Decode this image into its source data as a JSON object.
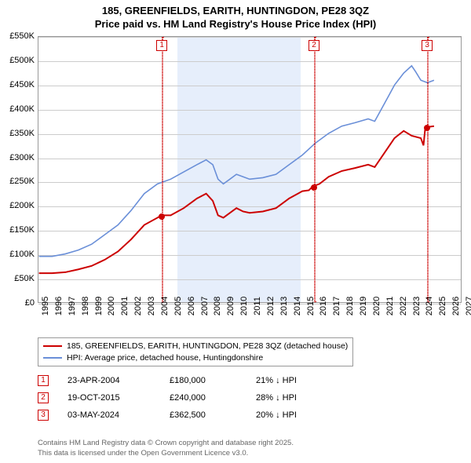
{
  "title_line1": "185, GREENFIELDS, EARITH, HUNTINGDON, PE28 3QZ",
  "title_line2": "Price paid vs. HM Land Registry's House Price Index (HPI)",
  "chart": {
    "type": "line",
    "x_min_year": 1995,
    "x_max_year": 2027,
    "y_min": 0,
    "y_max": 550000,
    "y_ticks": [
      0,
      50000,
      100000,
      150000,
      200000,
      250000,
      300000,
      350000,
      400000,
      450000,
      500000,
      550000
    ],
    "y_tick_labels": [
      "£0",
      "£50K",
      "£100K",
      "£150K",
      "£200K",
      "£250K",
      "£300K",
      "£350K",
      "£400K",
      "£450K",
      "£500K",
      "£550K"
    ],
    "x_ticks": [
      1995,
      1996,
      1997,
      1998,
      1999,
      2000,
      2001,
      2002,
      2003,
      2004,
      2005,
      2006,
      2007,
      2008,
      2009,
      2010,
      2011,
      2012,
      2013,
      2014,
      2015,
      2016,
      2017,
      2018,
      2019,
      2020,
      2021,
      2022,
      2023,
      2024,
      2025,
      2026,
      2027
    ],
    "grid_color": "#cccccc",
    "plot_border_color": "#999999",
    "background_color": "#ffffff",
    "highlight_band_color": "#e6eefb",
    "highlight_band_start": 2005.5,
    "highlight_band_end": 2014.8,
    "series": [
      {
        "id": "property",
        "label": "185, GREENFIELDS, EARITH, HUNTINGDON, PE28 3QZ (detached house)",
        "color": "#cc0000",
        "line_width": 2,
        "points": [
          [
            1995.0,
            60000
          ],
          [
            1996.0,
            60000
          ],
          [
            1997.0,
            62000
          ],
          [
            1998.0,
            68000
          ],
          [
            1999.0,
            75000
          ],
          [
            2000.0,
            88000
          ],
          [
            2001.0,
            105000
          ],
          [
            2002.0,
            130000
          ],
          [
            2003.0,
            160000
          ],
          [
            2004.0,
            175000
          ],
          [
            2004.3,
            180000
          ],
          [
            2005.0,
            180000
          ],
          [
            2006.0,
            195000
          ],
          [
            2007.0,
            215000
          ],
          [
            2007.7,
            225000
          ],
          [
            2008.2,
            210000
          ],
          [
            2008.6,
            180000
          ],
          [
            2009.0,
            175000
          ],
          [
            2009.5,
            185000
          ],
          [
            2010.0,
            195000
          ],
          [
            2010.5,
            188000
          ],
          [
            2011.0,
            185000
          ],
          [
            2012.0,
            188000
          ],
          [
            2013.0,
            195000
          ],
          [
            2014.0,
            215000
          ],
          [
            2015.0,
            230000
          ],
          [
            2015.5,
            232000
          ],
          [
            2015.8,
            240000
          ],
          [
            2016.3,
            245000
          ],
          [
            2017.0,
            260000
          ],
          [
            2018.0,
            272000
          ],
          [
            2019.0,
            278000
          ],
          [
            2020.0,
            285000
          ],
          [
            2020.5,
            280000
          ],
          [
            2021.0,
            300000
          ],
          [
            2021.5,
            320000
          ],
          [
            2022.0,
            340000
          ],
          [
            2022.7,
            355000
          ],
          [
            2023.3,
            345000
          ],
          [
            2024.0,
            340000
          ],
          [
            2024.2,
            325000
          ],
          [
            2024.34,
            362500
          ],
          [
            2025.0,
            365000
          ]
        ]
      },
      {
        "id": "hpi",
        "label": "HPI: Average price, detached house, Huntingdonshire",
        "color": "#6a8fd8",
        "line_width": 1.6,
        "points": [
          [
            1995.0,
            95000
          ],
          [
            1996.0,
            95000
          ],
          [
            1997.0,
            100000
          ],
          [
            1998.0,
            108000
          ],
          [
            1999.0,
            120000
          ],
          [
            2000.0,
            140000
          ],
          [
            2001.0,
            160000
          ],
          [
            2002.0,
            190000
          ],
          [
            2003.0,
            225000
          ],
          [
            2004.0,
            245000
          ],
          [
            2005.0,
            255000
          ],
          [
            2006.0,
            270000
          ],
          [
            2007.0,
            285000
          ],
          [
            2007.7,
            295000
          ],
          [
            2008.2,
            285000
          ],
          [
            2008.6,
            255000
          ],
          [
            2009.0,
            245000
          ],
          [
            2009.5,
            255000
          ],
          [
            2010.0,
            265000
          ],
          [
            2010.5,
            260000
          ],
          [
            2011.0,
            255000
          ],
          [
            2012.0,
            258000
          ],
          [
            2013.0,
            265000
          ],
          [
            2014.0,
            285000
          ],
          [
            2015.0,
            305000
          ],
          [
            2016.0,
            330000
          ],
          [
            2017.0,
            350000
          ],
          [
            2018.0,
            365000
          ],
          [
            2019.0,
            372000
          ],
          [
            2020.0,
            380000
          ],
          [
            2020.5,
            375000
          ],
          [
            2021.0,
            400000
          ],
          [
            2021.5,
            425000
          ],
          [
            2022.0,
            450000
          ],
          [
            2022.7,
            475000
          ],
          [
            2023.3,
            490000
          ],
          [
            2023.6,
            478000
          ],
          [
            2024.0,
            460000
          ],
          [
            2024.5,
            455000
          ],
          [
            2025.0,
            460000
          ]
        ]
      }
    ],
    "sales": [
      {
        "n": "1",
        "year": 2004.31,
        "price": 180000,
        "color": "#cc0000"
      },
      {
        "n": "2",
        "year": 2015.8,
        "price": 240000,
        "color": "#cc0000"
      },
      {
        "n": "3",
        "year": 2024.34,
        "price": 362500,
        "color": "#cc0000"
      }
    ]
  },
  "legend": [
    {
      "color": "#cc0000",
      "label": "185, GREENFIELDS, EARITH, HUNTINGDON, PE28 3QZ (detached house)"
    },
    {
      "color": "#6a8fd8",
      "label": "HPI: Average price, detached house, Huntingdonshire"
    }
  ],
  "sales_table": [
    {
      "n": "1",
      "date": "23-APR-2004",
      "price": "£180,000",
      "diff": "21% ↓ HPI",
      "color": "#cc0000"
    },
    {
      "n": "2",
      "date": "19-OCT-2015",
      "price": "£240,000",
      "diff": "28% ↓ HPI",
      "color": "#cc0000"
    },
    {
      "n": "3",
      "date": "03-MAY-2024",
      "price": "£362,500",
      "diff": "20% ↓ HPI",
      "color": "#cc0000"
    }
  ],
  "footer_line1": "Contains HM Land Registry data © Crown copyright and database right 2025.",
  "footer_line2": "This data is licensed under the Open Government Licence v3.0."
}
